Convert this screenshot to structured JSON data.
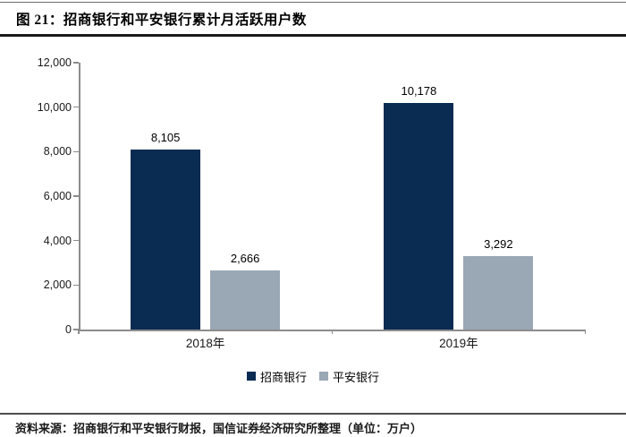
{
  "figure": {
    "title": "图 21：招商银行和平安银行累计月活跃用户数",
    "source_note": "资料来源：招商银行和平安银行财报，国信证券经济研究所整理（单位：万户）"
  },
  "chart_data": {
    "type": "bar",
    "title": "招商银行和平安银行累计月活跃用户数",
    "categories": [
      "2018年",
      "2019年"
    ],
    "series": [
      {
        "name": "招商银行",
        "color": "#0A2B52",
        "values": [
          8105,
          10178
        ],
        "labels": [
          "8,105",
          "10,178"
        ]
      },
      {
        "name": "平安银行",
        "color": "#9AA7B5",
        "values": [
          2666,
          3292
        ],
        "labels": [
          "2,666",
          "3,292"
        ]
      }
    ],
    "ylim": [
      0,
      12000
    ],
    "ytick_interval": 2000,
    "yticks": [
      "0",
      "2,000",
      "4,000",
      "6,000",
      "8,000",
      "10,000",
      "12,000"
    ],
    "xlabel": "",
    "ylabel": "",
    "unit": "万户",
    "grid": false,
    "legend_position": "bottom"
  }
}
